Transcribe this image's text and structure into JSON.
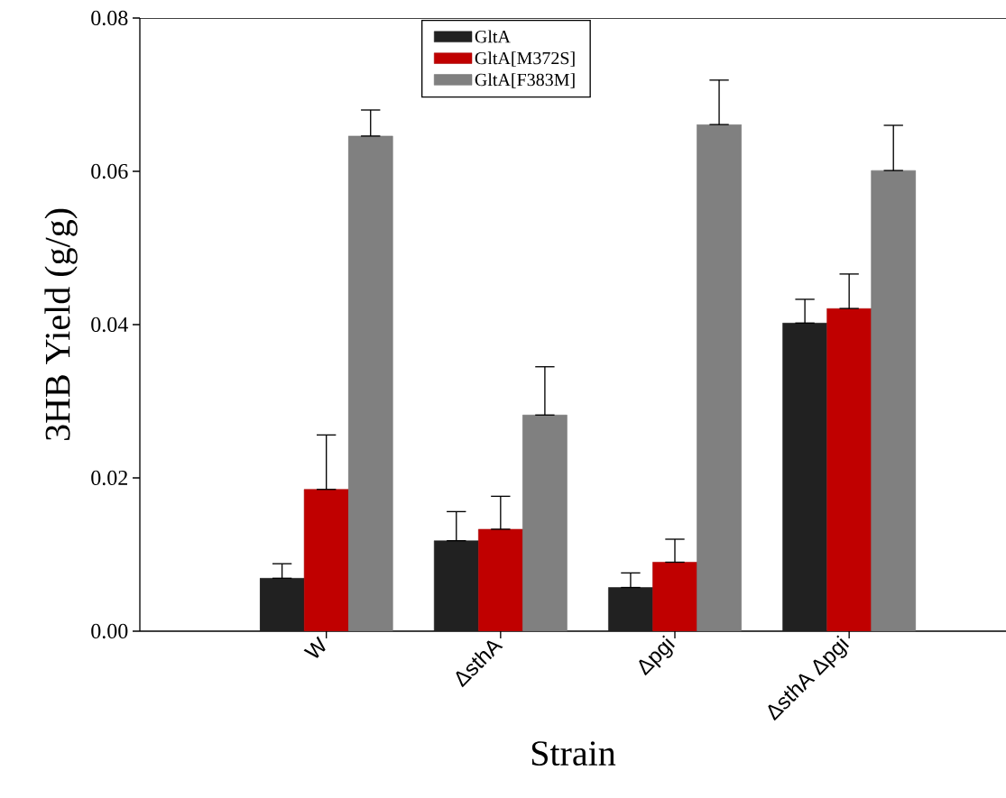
{
  "chart_data": {
    "type": "bar",
    "xlabel": "Strain",
    "ylabel": "3HB Yield (g/g)",
    "categories": [
      "W",
      "ΔsthA",
      "Δpgi",
      "ΔsthA Δpgi"
    ],
    "series": [
      {
        "name": "GltA",
        "color": "#212121",
        "values": [
          0.0069,
          0.0118,
          0.0057,
          0.0402
        ],
        "errors": [
          [
            0.0069,
            0.0088
          ],
          [
            0.0118,
            0.0156
          ],
          [
            0.0057,
            0.0076
          ],
          [
            0.0402,
            0.0433
          ]
        ]
      },
      {
        "name": "GltA[M372S]",
        "color": "#c00000",
        "values": [
          0.0185,
          0.0133,
          0.009,
          0.0421
        ],
        "errors": [
          [
            0.0185,
            0.0256
          ],
          [
            0.0133,
            0.0176
          ],
          [
            0.009,
            0.012
          ],
          [
            0.0421,
            0.0466
          ]
        ]
      },
      {
        "name": "GltA[F383M]",
        "color": "#808080",
        "values": [
          0.0646,
          0.0282,
          0.0661,
          0.0601
        ],
        "errors": [
          [
            0.0646,
            0.068
          ],
          [
            0.0282,
            0.0345
          ],
          [
            0.0661,
            0.0719
          ],
          [
            0.0601,
            0.066
          ]
        ]
      }
    ],
    "ylim": [
      0,
      0.08
    ],
    "yticks": [
      {
        "value": 0,
        "label": "0.00"
      },
      {
        "value": 0.02,
        "label": "0.02"
      },
      {
        "value": 0.04,
        "label": "0.04"
      },
      {
        "value": 0.06,
        "label": "0.06"
      },
      {
        "value": 0.08,
        "label": "0.08"
      }
    ],
    "legend": "top",
    "grid": false
  }
}
